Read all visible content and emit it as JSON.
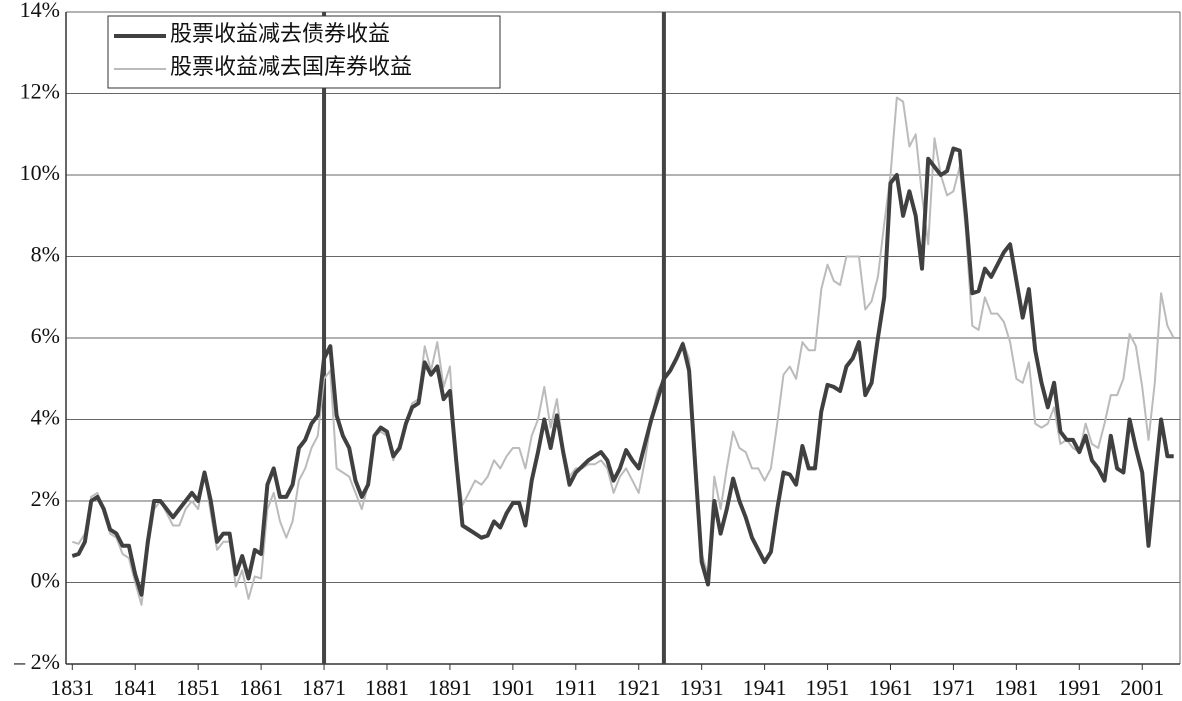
{
  "chart_data": {
    "type": "line",
    "x": [
      1831,
      1832,
      1833,
      1834,
      1835,
      1836,
      1837,
      1838,
      1839,
      1840,
      1841,
      1842,
      1843,
      1844,
      1845,
      1846,
      1847,
      1848,
      1849,
      1850,
      1851,
      1852,
      1853,
      1854,
      1855,
      1856,
      1857,
      1858,
      1859,
      1860,
      1861,
      1862,
      1863,
      1864,
      1865,
      1866,
      1867,
      1868,
      1869,
      1870,
      1871,
      1872,
      1873,
      1874,
      1875,
      1876,
      1877,
      1878,
      1879,
      1880,
      1881,
      1882,
      1883,
      1884,
      1885,
      1886,
      1887,
      1888,
      1889,
      1890,
      1891,
      1892,
      1893,
      1894,
      1895,
      1896,
      1897,
      1898,
      1899,
      1900,
      1901,
      1902,
      1903,
      1904,
      1905,
      1906,
      1907,
      1908,
      1909,
      1910,
      1911,
      1912,
      1913,
      1914,
      1915,
      1916,
      1917,
      1918,
      1919,
      1920,
      1921,
      1922,
      1923,
      1924,
      1925,
      1926,
      1927,
      1928,
      1929,
      1930,
      1931,
      1932,
      1933,
      1934,
      1935,
      1936,
      1937,
      1938,
      1939,
      1940,
      1941,
      1942,
      1943,
      1944,
      1945,
      1946,
      1947,
      1948,
      1949,
      1950,
      1951,
      1952,
      1953,
      1954,
      1955,
      1956,
      1957,
      1958,
      1959,
      1960,
      1961,
      1962,
      1963,
      1964,
      1965,
      1966,
      1967,
      1968,
      1969,
      1970,
      1971,
      1972,
      1973,
      1974,
      1975,
      1976,
      1977,
      1978,
      1979,
      1980,
      1981,
      1982,
      1983,
      1984,
      1985,
      1986,
      1987,
      1988,
      1989,
      1990,
      1991,
      1992,
      1993,
      1994,
      1995,
      1996,
      1997,
      1998,
      1999,
      2000,
      2001,
      2002,
      2003,
      2004,
      2005,
      2006
    ],
    "series": [
      {
        "name": "股票收益减去债券收益",
        "color": "#404040",
        "values": [
          0.65,
          0.7,
          1.0,
          2.0,
          2.1,
          1.8,
          1.3,
          1.2,
          0.9,
          0.9,
          0.2,
          -0.3,
          1.0,
          2.0,
          2.0,
          1.8,
          1.6,
          1.8,
          2.0,
          2.2,
          2.0,
          2.7,
          2.0,
          1.0,
          1.2,
          1.2,
          0.2,
          0.65,
          0.1,
          0.8,
          0.7,
          2.4,
          2.8,
          2.1,
          2.1,
          2.4,
          3.3,
          3.5,
          3.9,
          4.1,
          5.5,
          5.8,
          4.1,
          3.6,
          3.3,
          2.5,
          2.1,
          2.4,
          3.6,
          3.8,
          3.7,
          3.1,
          3.3,
          3.9,
          4.3,
          4.4,
          5.4,
          5.1,
          5.3,
          4.5,
          4.7,
          3.0,
          1.4,
          1.3,
          1.2,
          1.1,
          1.15,
          1.5,
          1.35,
          1.7,
          1.95,
          1.95,
          1.4,
          2.5,
          3.2,
          4.0,
          3.3,
          4.1,
          3.2,
          2.4,
          2.7,
          2.85,
          3.0,
          3.1,
          3.2,
          3.0,
          2.5,
          2.8,
          3.25,
          3.0,
          2.8,
          3.4,
          4.0,
          4.5,
          5.0,
          5.2,
          5.5,
          5.85,
          5.2,
          2.8,
          0.5,
          -0.05,
          2.0,
          1.2,
          1.8,
          2.55,
          2.0,
          1.6,
          1.1,
          0.8,
          0.5,
          0.75,
          1.8,
          2.7,
          2.65,
          2.4,
          3.35,
          2.8,
          2.8,
          4.2,
          4.85,
          4.8,
          4.7,
          5.3,
          5.5,
          5.9,
          4.6,
          4.9,
          6.0,
          7.0,
          9.8,
          10.0,
          9.0,
          9.6,
          9.0,
          7.7,
          10.4,
          10.2,
          10.0,
          10.1,
          10.65,
          10.6,
          9.0,
          7.1,
          7.15,
          7.7,
          7.5,
          7.8,
          8.1,
          8.3,
          7.4,
          6.5,
          7.2,
          5.7,
          4.9,
          4.3,
          4.9,
          3.7,
          3.5,
          3.5,
          3.2,
          3.6,
          3.0,
          2.8,
          2.5,
          3.6,
          2.8,
          2.7,
          4.0,
          3.3,
          2.7,
          0.9,
          2.5,
          4.0,
          3.1,
          3.1
        ]
      },
      {
        "name": "股票收益减去国库券收益",
        "color": "#bbbbbb",
        "values": [
          1.0,
          0.95,
          1.2,
          2.1,
          2.2,
          1.7,
          1.2,
          1.1,
          0.7,
          0.6,
          0.0,
          -0.55,
          0.8,
          1.8,
          2.0,
          1.7,
          1.4,
          1.4,
          1.8,
          2.0,
          1.8,
          2.7,
          1.7,
          0.8,
          1.0,
          1.0,
          -0.1,
          0.3,
          -0.4,
          0.15,
          0.1,
          1.8,
          2.2,
          1.5,
          1.1,
          1.5,
          2.5,
          2.8,
          3.3,
          3.6,
          5.0,
          5.2,
          2.8,
          2.7,
          2.6,
          2.2,
          1.8,
          2.4,
          3.6,
          3.7,
          3.6,
          3.0,
          3.4,
          3.9,
          4.4,
          4.5,
          5.8,
          5.2,
          5.9,
          4.8,
          5.3,
          3.0,
          1.9,
          2.2,
          2.5,
          2.4,
          2.6,
          3.0,
          2.8,
          3.1,
          3.3,
          3.3,
          2.8,
          3.6,
          4.0,
          4.8,
          3.8,
          4.5,
          3.3,
          2.6,
          2.8,
          2.8,
          2.9,
          2.9,
          3.0,
          2.8,
          2.2,
          2.6,
          2.8,
          2.5,
          2.2,
          3.0,
          4.0,
          4.7,
          5.0,
          5.2,
          5.5,
          5.9,
          5.5,
          3.2,
          0.7,
          0.2,
          2.6,
          1.8,
          2.8,
          3.7,
          3.3,
          3.2,
          2.8,
          2.8,
          2.5,
          2.8,
          3.9,
          5.1,
          5.3,
          5.0,
          5.9,
          5.7,
          5.7,
          7.2,
          7.8,
          7.4,
          7.3,
          8.0,
          8.0,
          8.0,
          6.7,
          6.9,
          7.5,
          8.8,
          10.0,
          11.9,
          11.8,
          10.7,
          11.0,
          9.5,
          8.3,
          10.9,
          10.0,
          9.5,
          9.6,
          10.2,
          8.6,
          6.3,
          6.2,
          7.0,
          6.6,
          6.6,
          6.4,
          5.9,
          5.0,
          4.9,
          5.4,
          3.9,
          3.8,
          3.9,
          4.3,
          3.4,
          3.5,
          3.3,
          3.2,
          3.9,
          3.4,
          3.3,
          3.9,
          4.6,
          4.6,
          5.0,
          6.1,
          5.8,
          4.8,
          3.5,
          4.9,
          7.1,
          6.3,
          6.0
        ]
      }
    ],
    "xlim": [
      1830,
      2007
    ],
    "xticks": [
      1831,
      1841,
      1851,
      1861,
      1871,
      1881,
      1891,
      1901,
      1911,
      1921,
      1931,
      1941,
      1951,
      1961,
      1971,
      1981,
      1991,
      2001
    ],
    "ylim": [
      -2,
      14
    ],
    "yticks": [
      {
        "value": -2,
        "label": "– 2%"
      },
      {
        "value": 0,
        "label": "0%"
      },
      {
        "value": 2,
        "label": "2%"
      },
      {
        "value": 4,
        "label": "4%"
      },
      {
        "value": 6,
        "label": "6%"
      },
      {
        "value": 8,
        "label": "8%"
      },
      {
        "value": 10,
        "label": "10%"
      },
      {
        "value": 12,
        "label": "12%"
      },
      {
        "value": 14,
        "label": "14%"
      }
    ],
    "vlines": [
      1871,
      1925
    ],
    "grid": true,
    "legend": "upper left"
  }
}
